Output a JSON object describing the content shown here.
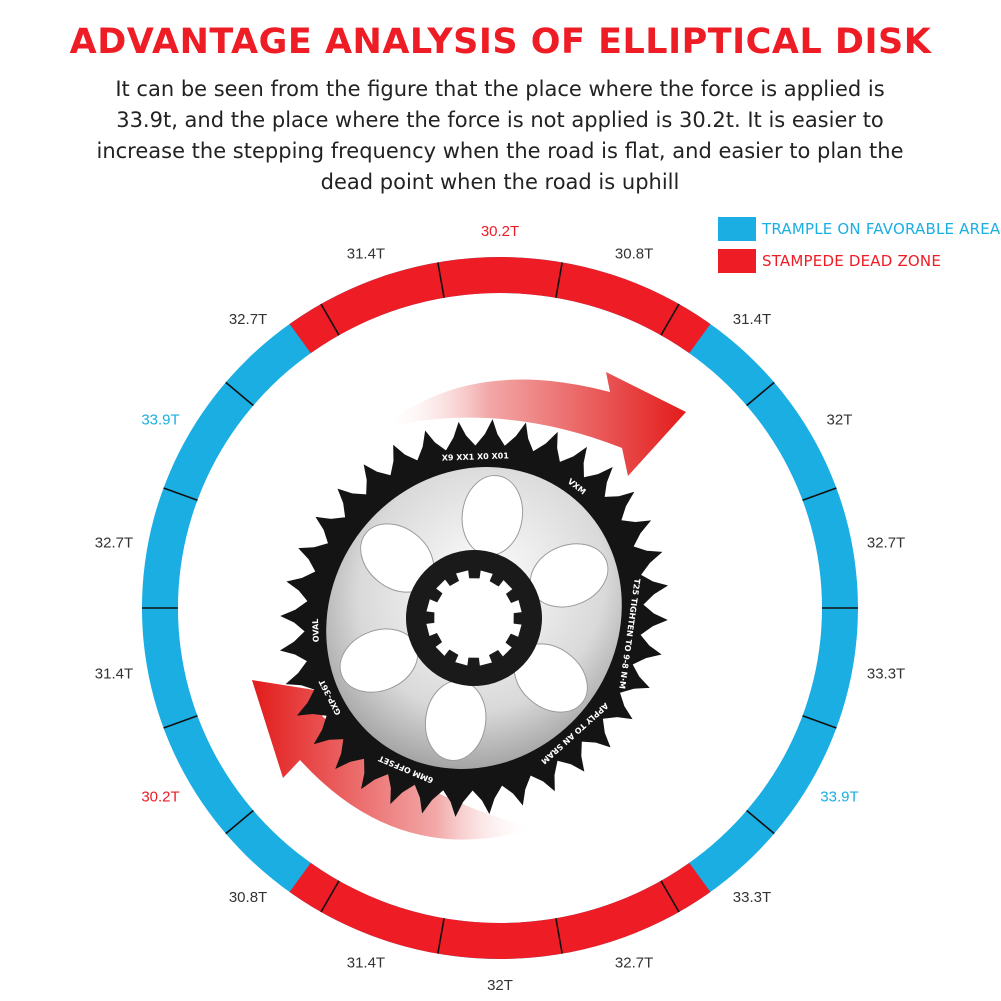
{
  "title": "ADVANTAGE ANALYSIS OF ELLIPTICAL DISK",
  "description": "It can be seen from the figure that the place where the force is applied is 33.9t, and the place where the force is not applied is 30.2t. It is easier to increase the stepping frequency when the road is flat, and easier to plan the dead point when the road is uphill",
  "legend": [
    {
      "label": "TRAMPLE ON FAVORABLE AREA",
      "color": "#1aaee3"
    },
    {
      "label": "STAMPEDE DEAD ZONE",
      "color": "#ee1c25"
    }
  ],
  "colors": {
    "favorable": "#1aaee3",
    "dead_zone": "#ee1c25",
    "label_default": "#333333",
    "label_highlight_blue": "#1aaee3",
    "label_highlight_red": "#ee1c25"
  },
  "ring_labels": [
    {
      "text": "30.2T",
      "highlight": "red"
    },
    {
      "text": "30.8T",
      "highlight": ""
    },
    {
      "text": "31.4T",
      "highlight": ""
    },
    {
      "text": "32T",
      "highlight": ""
    },
    {
      "text": "32.7T",
      "highlight": ""
    },
    {
      "text": "33.3T",
      "highlight": ""
    },
    {
      "text": "33.9T",
      "highlight": "blue"
    },
    {
      "text": "33.3T",
      "highlight": ""
    },
    {
      "text": "32.7T",
      "highlight": ""
    },
    {
      "text": "32T",
      "highlight": ""
    },
    {
      "text": "31.4T",
      "highlight": ""
    },
    {
      "text": "30.8T",
      "highlight": ""
    },
    {
      "text": "30.2T",
      "highlight": "red"
    },
    {
      "text": "31.4T",
      "highlight": ""
    },
    {
      "text": "32.7T",
      "highlight": ""
    },
    {
      "text": "33.9T",
      "highlight": "blue"
    },
    {
      "text": "32.7T",
      "highlight": ""
    },
    {
      "text": "31.4T",
      "highlight": ""
    }
  ],
  "gear": {
    "brand": "VXM",
    "texts": [
      "X9 XX1 X0 X01",
      "T25 TIGHTEN TO 9-8 N·M",
      "APPLY TO AN SRAM",
      "6MM OFFSET",
      "GXP-36T",
      "OVAL"
    ]
  }
}
